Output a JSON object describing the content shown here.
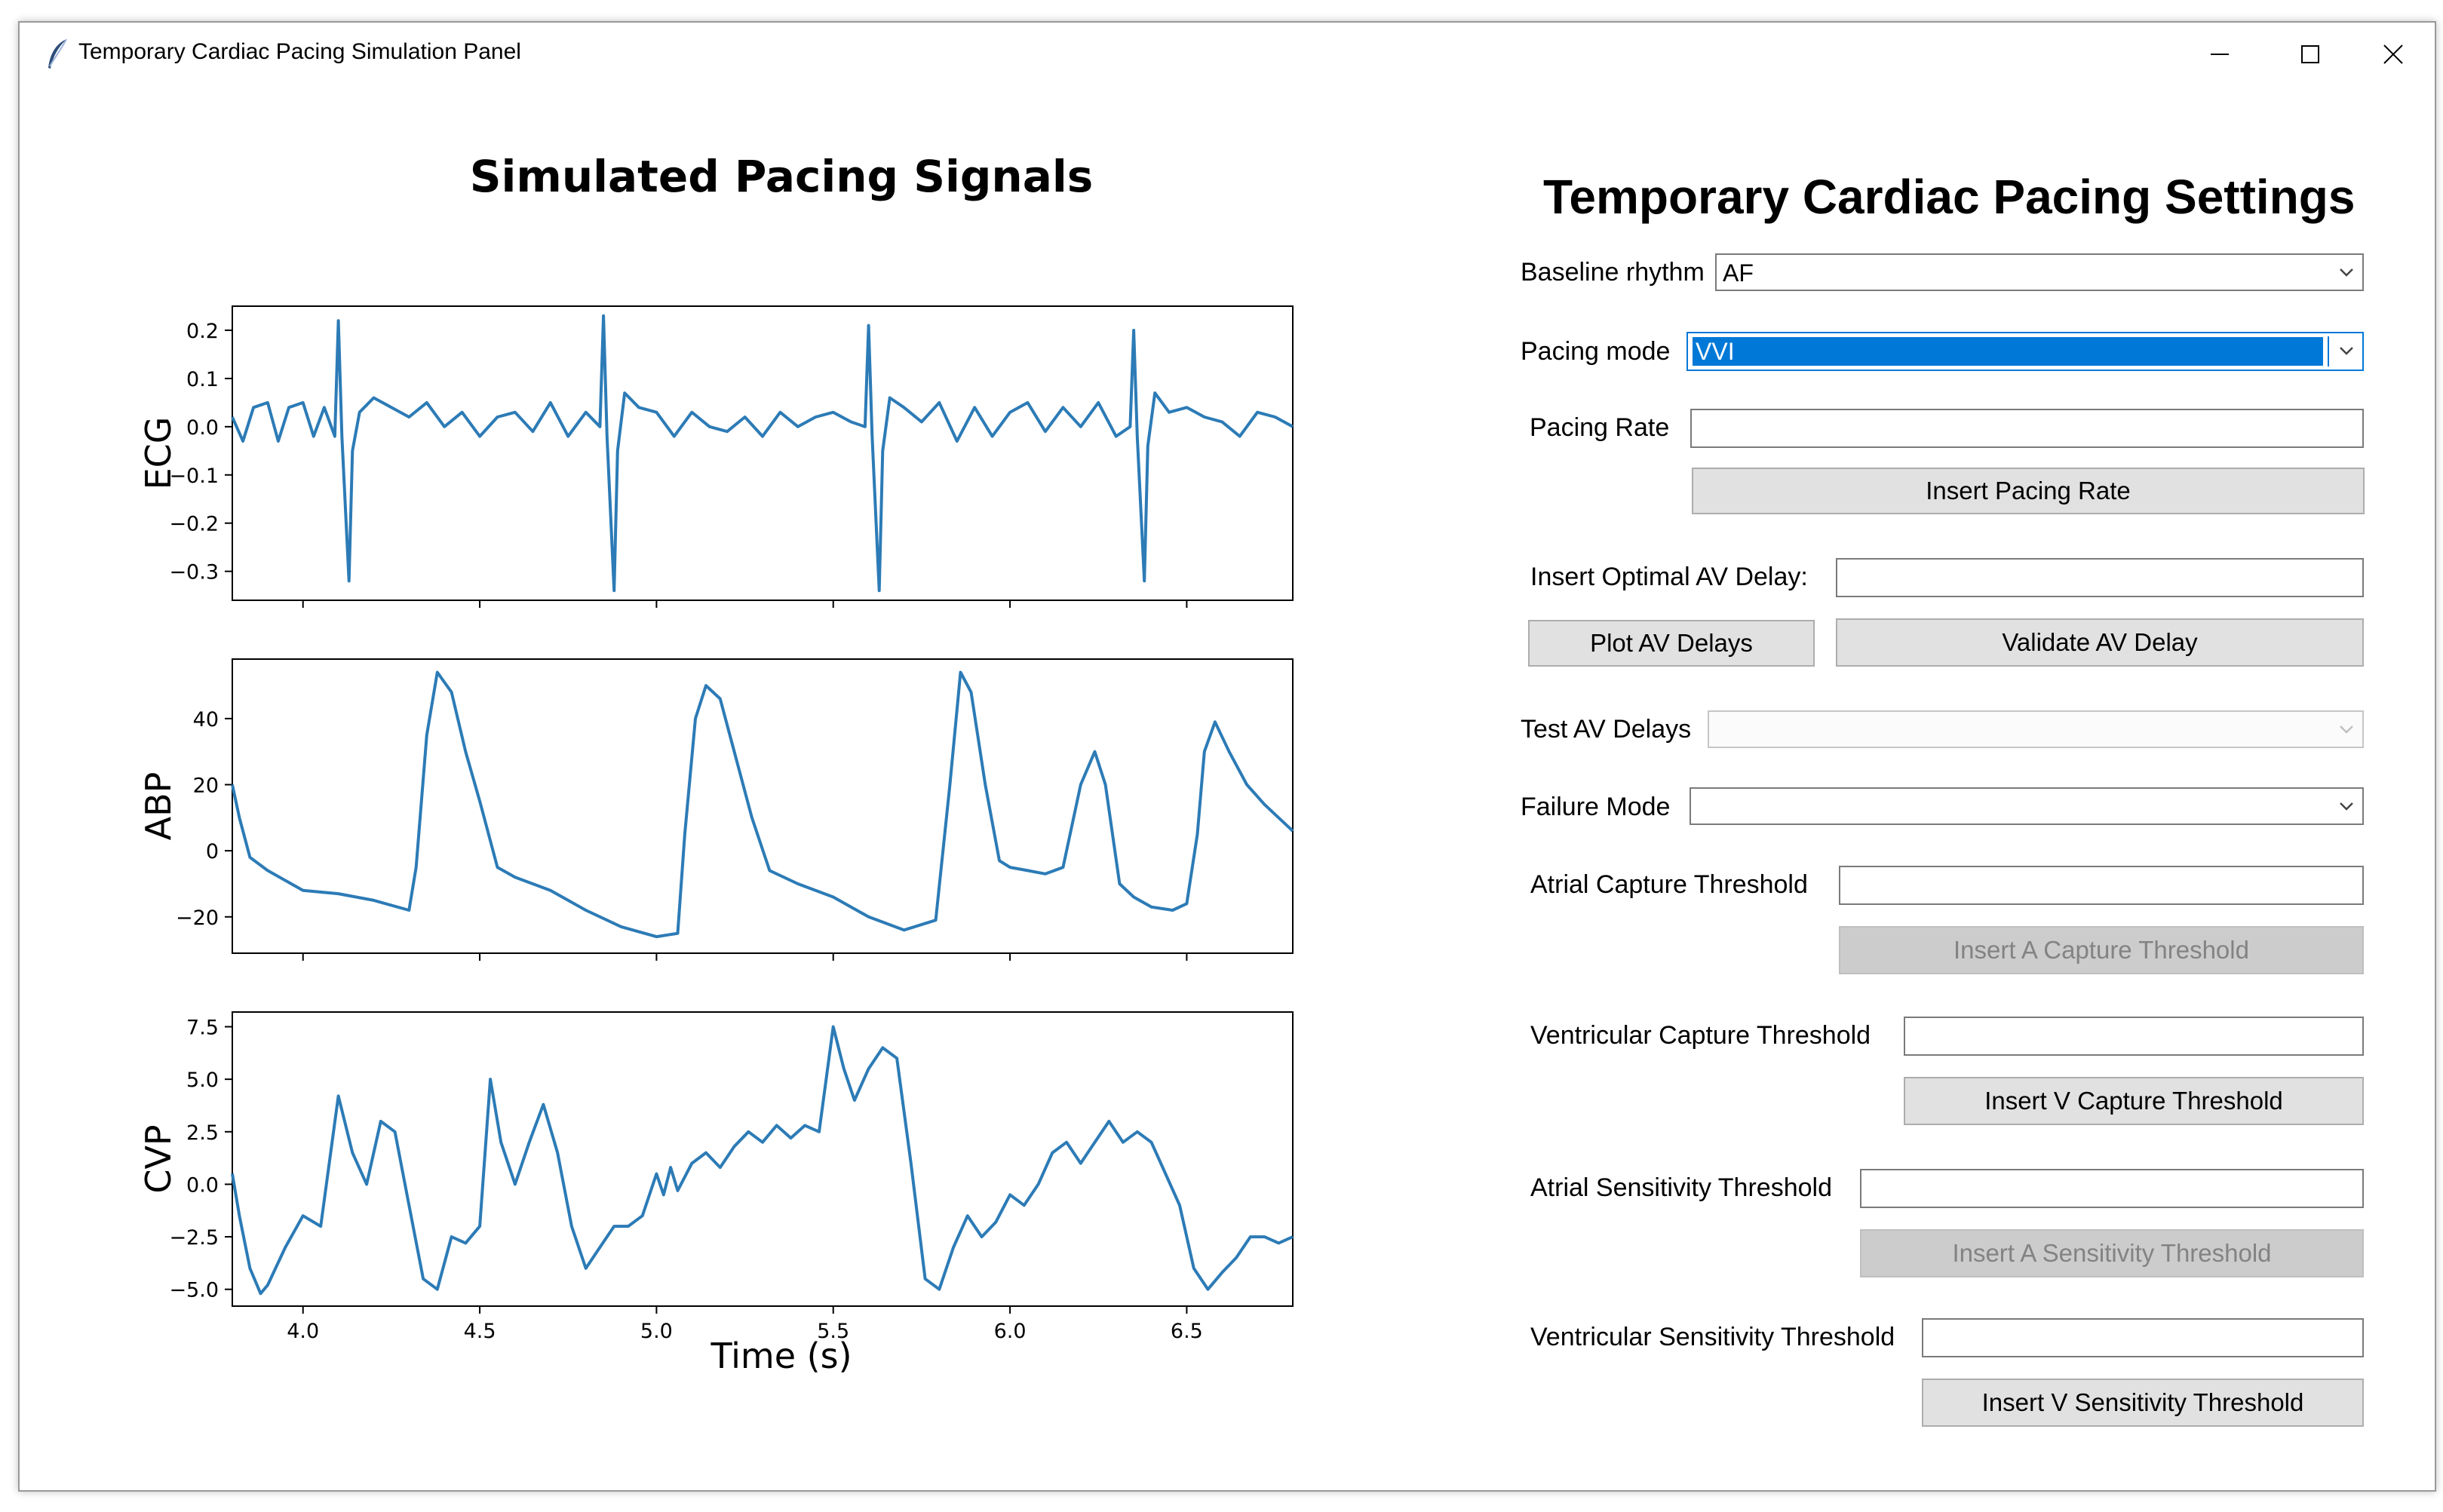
{
  "window": {
    "title": "Temporary Cardiac Pacing Simulation Panel",
    "controls": [
      "minimize",
      "maximize",
      "close"
    ]
  },
  "chart_data": {
    "type": "line",
    "title": "Simulated Pacing Signals",
    "xlabel": "Time (s)",
    "xlim": [
      3.8,
      6.8
    ],
    "xticks": [
      "4.0",
      "4.5",
      "5.0",
      "5.5",
      "6.0",
      "6.5"
    ],
    "line_color": "#2c7bb6",
    "subplots": [
      {
        "ylabel": "ECG",
        "ylim": [
          -0.36,
          0.25
        ],
        "yticks": [
          "0.2",
          "0.1",
          "0.0",
          "−0.1",
          "−0.2",
          "−0.3"
        ],
        "ytick_values": [
          0.2,
          0.1,
          0.0,
          -0.1,
          -0.2,
          -0.3
        ],
        "x": [
          3.8,
          3.83,
          3.86,
          3.9,
          3.93,
          3.96,
          4.0,
          4.03,
          4.06,
          4.09,
          4.1,
          4.11,
          4.13,
          4.14,
          4.16,
          4.2,
          4.25,
          4.3,
          4.35,
          4.4,
          4.45,
          4.5,
          4.55,
          4.6,
          4.65,
          4.7,
          4.75,
          4.8,
          4.84,
          4.85,
          4.86,
          4.88,
          4.89,
          4.91,
          4.95,
          5.0,
          5.05,
          5.1,
          5.15,
          5.2,
          5.25,
          5.3,
          5.35,
          5.4,
          5.45,
          5.5,
          5.55,
          5.59,
          5.6,
          5.61,
          5.63,
          5.64,
          5.66,
          5.7,
          5.75,
          5.8,
          5.85,
          5.9,
          5.95,
          6.0,
          6.05,
          6.1,
          6.15,
          6.2,
          6.25,
          6.3,
          6.34,
          6.35,
          6.36,
          6.38,
          6.39,
          6.41,
          6.45,
          6.5,
          6.55,
          6.6,
          6.65,
          6.7,
          6.75,
          6.8
        ],
        "y": [
          0.02,
          -0.03,
          0.04,
          0.05,
          -0.03,
          0.04,
          0.05,
          -0.02,
          0.04,
          -0.02,
          0.22,
          -0.02,
          -0.32,
          -0.05,
          0.03,
          0.06,
          0.04,
          0.02,
          0.05,
          0.0,
          0.03,
          -0.02,
          0.02,
          0.03,
          -0.01,
          0.05,
          -0.02,
          0.03,
          0.0,
          0.23,
          -0.02,
          -0.34,
          -0.05,
          0.07,
          0.04,
          0.03,
          -0.02,
          0.03,
          0.0,
          -0.01,
          0.02,
          -0.02,
          0.03,
          0.0,
          0.02,
          0.03,
          0.01,
          0.0,
          0.21,
          -0.02,
          -0.34,
          -0.05,
          0.06,
          0.04,
          0.01,
          0.05,
          -0.03,
          0.04,
          -0.02,
          0.03,
          0.05,
          -0.01,
          0.04,
          0.0,
          0.05,
          -0.02,
          0.0,
          0.2,
          -0.02,
          -0.32,
          -0.04,
          0.07,
          0.03,
          0.04,
          0.02,
          0.01,
          -0.02,
          0.03,
          0.02,
          0.0
        ]
      },
      {
        "ylabel": "ABP",
        "ylim": [
          -31,
          58
        ],
        "yticks": [
          "40",
          "20",
          "0",
          "−20"
        ],
        "ytick_values": [
          40,
          20,
          0,
          -20
        ],
        "x": [
          3.8,
          3.82,
          3.85,
          3.9,
          4.0,
          4.1,
          4.2,
          4.3,
          4.32,
          4.35,
          4.38,
          4.42,
          4.46,
          4.5,
          4.55,
          4.6,
          4.7,
          4.8,
          4.9,
          5.0,
          5.06,
          5.08,
          5.11,
          5.14,
          5.18,
          5.22,
          5.27,
          5.32,
          5.4,
          5.5,
          5.6,
          5.7,
          5.79,
          5.83,
          5.86,
          5.89,
          5.93,
          5.97,
          6.0,
          6.05,
          6.1,
          6.15,
          6.2,
          6.24,
          6.27,
          6.31,
          6.35,
          6.4,
          6.46,
          6.5,
          6.53,
          6.55,
          6.58,
          6.62,
          6.67,
          6.72,
          6.8
        ],
        "y": [
          20,
          10,
          -2,
          -6,
          -12,
          -13,
          -15,
          -18,
          -5,
          35,
          54,
          48,
          30,
          15,
          -5,
          -8,
          -12,
          -18,
          -23,
          -26,
          -25,
          5,
          40,
          50,
          46,
          30,
          10,
          -6,
          -10,
          -14,
          -20,
          -24,
          -21,
          20,
          54,
          48,
          20,
          -3,
          -5,
          -6,
          -7,
          -5,
          20,
          30,
          20,
          -10,
          -14,
          -17,
          -18,
          -16,
          5,
          30,
          39,
          30,
          20,
          14,
          6
        ]
      },
      {
        "ylabel": "CVP",
        "ylim": [
          -5.8,
          8.2
        ],
        "yticks": [
          "7.5",
          "5.0",
          "2.5",
          "0.0",
          "−2.5",
          "−5.0"
        ],
        "ytick_values": [
          7.5,
          5.0,
          2.5,
          0.0,
          -2.5,
          -5.0
        ],
        "x": [
          3.8,
          3.82,
          3.85,
          3.88,
          3.9,
          3.95,
          4.0,
          4.05,
          4.1,
          4.14,
          4.18,
          4.22,
          4.26,
          4.3,
          4.34,
          4.38,
          4.42,
          4.46,
          4.5,
          4.53,
          4.56,
          4.6,
          4.64,
          4.68,
          4.72,
          4.76,
          4.8,
          4.84,
          4.88,
          4.92,
          4.96,
          5.0,
          5.02,
          5.04,
          5.06,
          5.1,
          5.14,
          5.18,
          5.22,
          5.26,
          5.3,
          5.34,
          5.38,
          5.42,
          5.46,
          5.5,
          5.53,
          5.56,
          5.6,
          5.64,
          5.68,
          5.72,
          5.76,
          5.8,
          5.84,
          5.88,
          5.92,
          5.96,
          6.0,
          6.04,
          6.08,
          6.12,
          6.16,
          6.2,
          6.24,
          6.28,
          6.32,
          6.36,
          6.4,
          6.44,
          6.48,
          6.52,
          6.56,
          6.6,
          6.64,
          6.68,
          6.72,
          6.76,
          6.8
        ],
        "y": [
          0.5,
          -1.5,
          -4.0,
          -5.2,
          -4.8,
          -3.0,
          -1.5,
          -2.0,
          4.2,
          1.5,
          0.0,
          3.0,
          2.5,
          -1.0,
          -4.5,
          -5.0,
          -2.5,
          -2.8,
          -2.0,
          5.0,
          2.0,
          0.0,
          2.0,
          3.8,
          1.5,
          -2.0,
          -4.0,
          -3.0,
          -2.0,
          -2.0,
          -1.5,
          0.5,
          -0.5,
          0.8,
          -0.3,
          1.0,
          1.5,
          0.8,
          1.8,
          2.5,
          2.0,
          2.8,
          2.2,
          2.8,
          2.5,
          7.5,
          5.5,
          4.0,
          5.5,
          6.5,
          6.0,
          1.0,
          -4.5,
          -5.0,
          -3.0,
          -1.5,
          -2.5,
          -1.8,
          -0.5,
          -1.0,
          0.0,
          1.5,
          2.0,
          1.0,
          2.0,
          3.0,
          2.0,
          2.5,
          2.0,
          0.5,
          -1.0,
          -4.0,
          -5.0,
          -4.2,
          -3.5,
          -2.5,
          -2.5,
          -2.8,
          -2.5
        ]
      }
    ]
  },
  "settings": {
    "title": "Temporary Cardiac Pacing Settings",
    "baseline_rhythm": {
      "label": "Baseline rhythm",
      "value": "AF"
    },
    "pacing_mode": {
      "label": "Pacing mode",
      "value": "VVI"
    },
    "pacing_rate": {
      "label": "Pacing Rate",
      "value": "",
      "button": "Insert Pacing Rate"
    },
    "av_delay": {
      "label": "Insert Optimal AV Delay:",
      "value": "",
      "plot_button": "Plot AV Delays",
      "validate_button": "Validate AV Delay"
    },
    "test_av_delays": {
      "label": "Test AV Delays",
      "value": ""
    },
    "failure_mode": {
      "label": "Failure Mode",
      "value": ""
    },
    "atrial_capture": {
      "label": "Atrial Capture Threshold",
      "value": "",
      "button": "Insert A Capture Threshold"
    },
    "ventricular_capture": {
      "label": "Ventricular Capture Threshold",
      "value": "",
      "button": "Insert V Capture Threshold"
    },
    "atrial_sensitivity": {
      "label": "Atrial Sensitivity Threshold",
      "value": "",
      "button": "Insert A Sensitivity Threshold"
    },
    "ventricular_sensitivity": {
      "label": "Ventricular Sensitivity Threshold",
      "value": "",
      "button": "Insert V Sensitivity Threshold"
    }
  }
}
